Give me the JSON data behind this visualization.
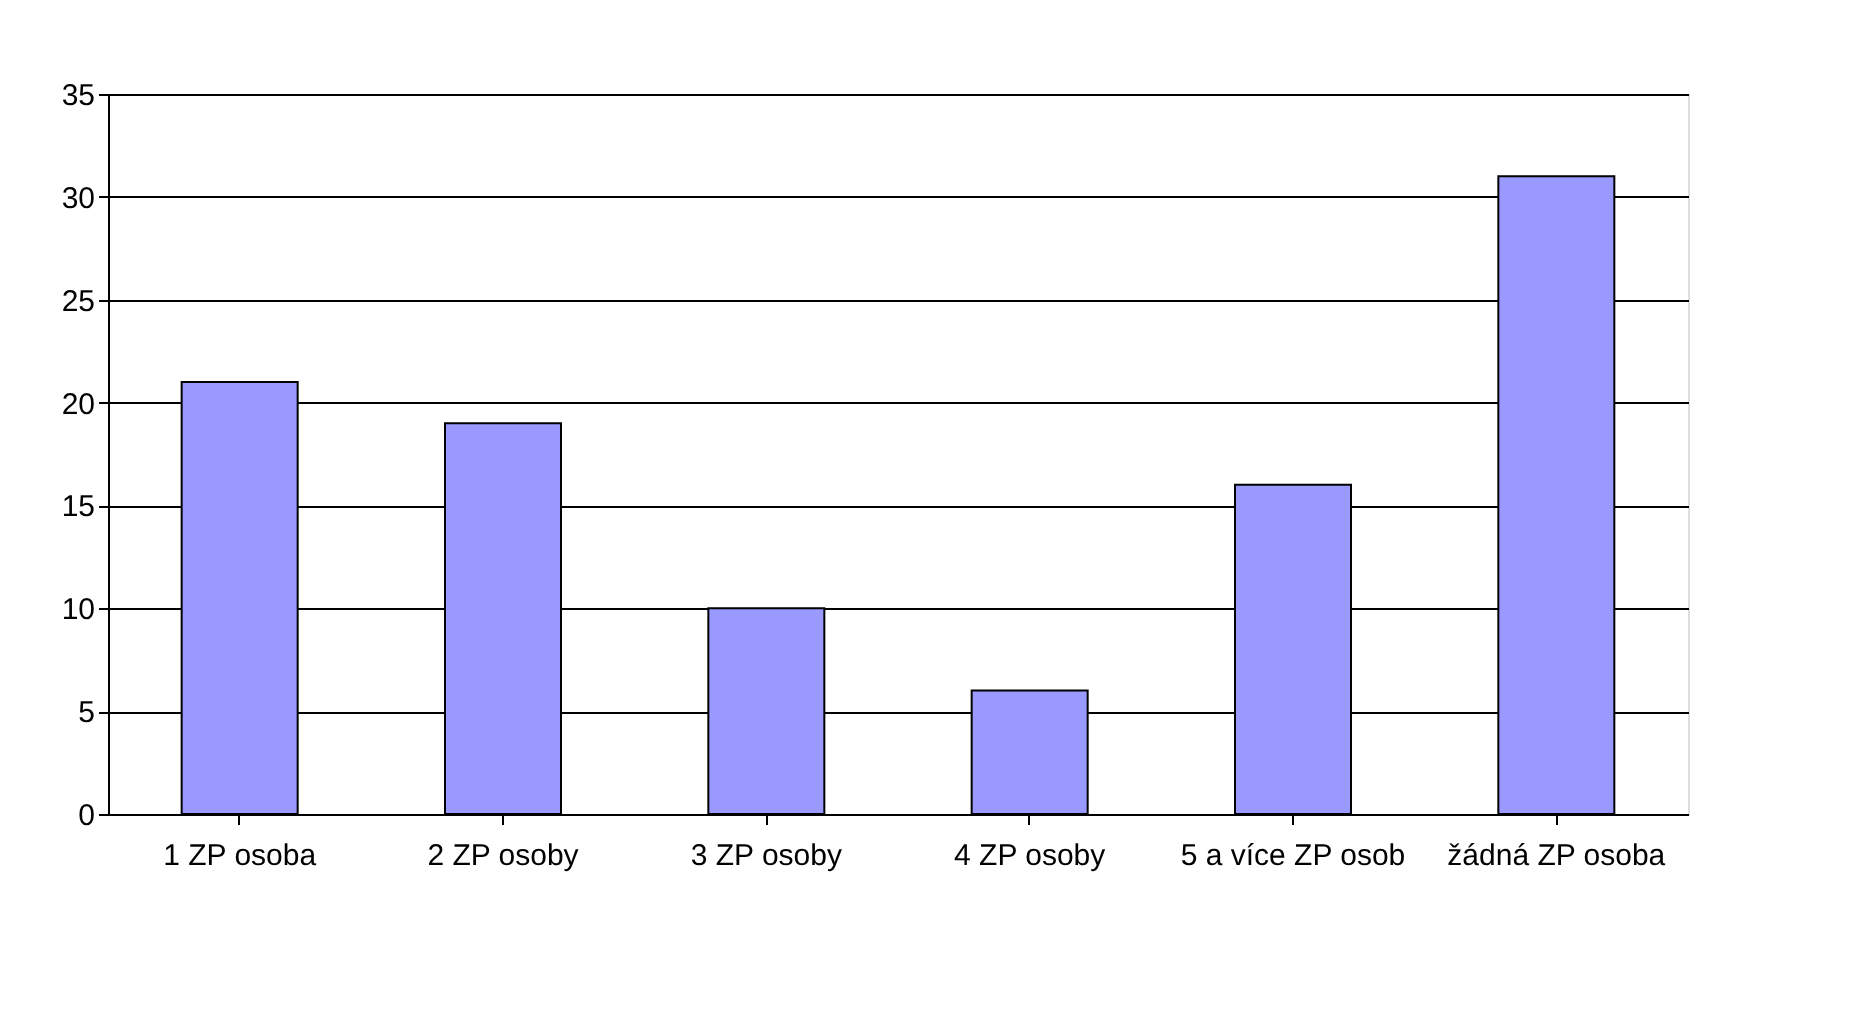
{
  "chart_data": {
    "type": "bar",
    "categories": [
      "1 ZP osoba",
      "2 ZP osoby",
      "3 ZP osoby",
      "4 ZP osoby",
      "5 a více ZP osob",
      "žádná ZP osoba"
    ],
    "values": [
      21,
      19,
      10,
      6,
      16,
      31
    ],
    "color": "#9999ff",
    "ylim": [
      0,
      35
    ],
    "yticks": [
      0,
      5,
      10,
      15,
      20,
      25,
      30,
      35
    ],
    "grid": "y",
    "legend": false
  }
}
